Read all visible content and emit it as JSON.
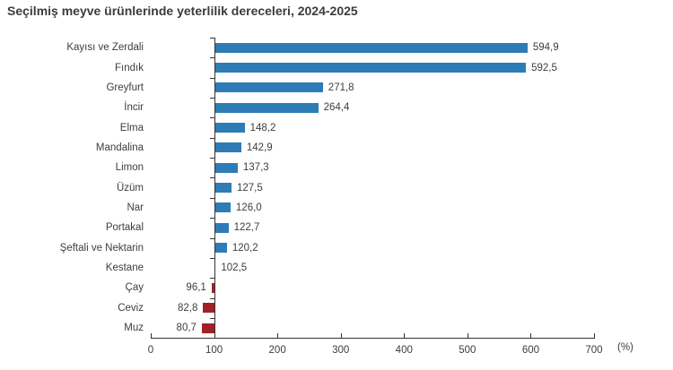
{
  "title": "Seçilmiş meyve ürünlerinde yeterlilik dereceleri, 2024-2025",
  "chart_data": {
    "type": "bar",
    "orientation": "horizontal",
    "title": "Seçilmiş meyve ürünlerinde yeterlilik dereceleri, 2024-2025",
    "baseline": 100,
    "categories": [
      "Kayısı ve Zerdali",
      "Fındık",
      "Greyfurt",
      "İncir",
      "Elma",
      "Mandalina",
      "Limon",
      "Üzüm",
      "Nar",
      "Portakal",
      "Şeftali ve Nektarin",
      "Kestane",
      "Çay",
      "Ceviz",
      "Muz"
    ],
    "values": [
      594.9,
      592.5,
      271.8,
      264.4,
      148.2,
      142.9,
      137.3,
      127.5,
      126.0,
      122.7,
      120.2,
      102.5,
      96.1,
      82.8,
      80.7
    ],
    "value_labels": [
      "594,9",
      "592,5",
      "271,8",
      "264,4",
      "148,2",
      "142,9",
      "137,3",
      "127,5",
      "126,0",
      "122,7",
      "120,2",
      "102,5",
      "96,1",
      "82,8",
      "80,7"
    ],
    "x_ticks": [
      0,
      100,
      200,
      300,
      400,
      500,
      600,
      700
    ],
    "xlim": [
      0,
      700
    ],
    "xlabel": "(%)",
    "grid": false,
    "legend": null,
    "colors": {
      "bar_above_baseline": "#2e7cb5",
      "bar_below_baseline": "#a32025",
      "text": "#3d3d3d",
      "axis": "#333333"
    }
  }
}
